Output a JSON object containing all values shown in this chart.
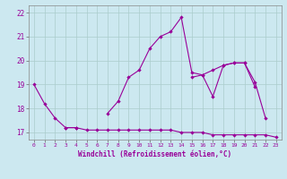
{
  "xlabel": "Windchill (Refroidissement éolien,°C)",
  "background_color": "#cce8f0",
  "line_color": "#990099",
  "grid_color": "#aacccc",
  "x": [
    0,
    1,
    2,
    3,
    4,
    5,
    6,
    7,
    8,
    9,
    10,
    11,
    12,
    13,
    14,
    15,
    16,
    17,
    18,
    19,
    20,
    21,
    22,
    23
  ],
  "line1": [
    19.0,
    18.2,
    17.6,
    17.2,
    17.2,
    null,
    null,
    17.8,
    18.3,
    19.3,
    19.6,
    20.5,
    21.0,
    21.2,
    21.8,
    19.5,
    19.4,
    18.5,
    19.8,
    19.9,
    19.9,
    18.9,
    null,
    null
  ],
  "line2": [
    null,
    null,
    null,
    17.2,
    17.2,
    17.1,
    17.1,
    17.1,
    17.1,
    17.1,
    17.1,
    17.1,
    17.1,
    17.1,
    17.0,
    17.0,
    17.0,
    16.9,
    16.9,
    16.9,
    16.9,
    16.9,
    16.9,
    16.8
  ],
  "line3": [
    null,
    null,
    null,
    null,
    null,
    null,
    null,
    null,
    null,
    null,
    null,
    null,
    null,
    null,
    null,
    19.3,
    19.4,
    19.6,
    19.8,
    19.9,
    19.9,
    19.1,
    17.6,
    null
  ],
  "ylim": [
    16.7,
    22.3
  ],
  "xlim": [
    -0.5,
    23.5
  ],
  "yticks": [
    17,
    18,
    19,
    20,
    21,
    22
  ],
  "xticks": [
    0,
    1,
    2,
    3,
    4,
    5,
    6,
    7,
    8,
    9,
    10,
    11,
    12,
    13,
    14,
    15,
    16,
    17,
    18,
    19,
    20,
    21,
    22,
    23
  ]
}
